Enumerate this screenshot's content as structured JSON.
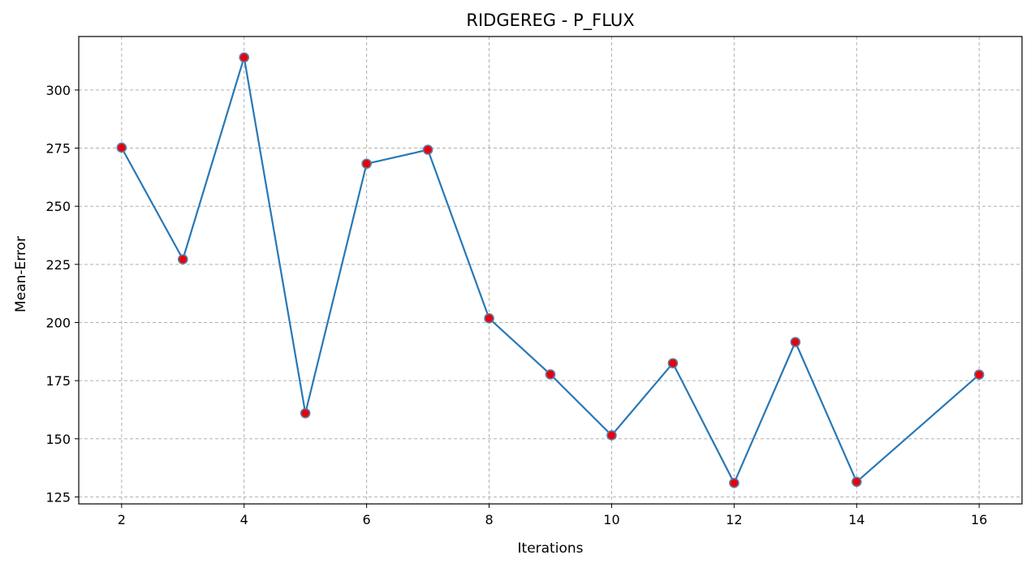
{
  "chart_data": {
    "type": "line",
    "title": "RIDGEREG - P_FLUX",
    "xlabel": "Iterations",
    "ylabel": "Mean-Error",
    "xlim": [
      1.3,
      16.7
    ],
    "ylim": [
      122,
      323
    ],
    "xticks": [
      2,
      4,
      6,
      8,
      10,
      12,
      14,
      16
    ],
    "yticks": [
      125,
      150,
      175,
      200,
      225,
      250,
      275,
      300
    ],
    "grid": true,
    "series": [
      {
        "x": [
          2,
          3,
          4,
          5,
          6,
          7,
          8,
          9,
          10,
          11,
          12,
          13,
          14,
          16
        ],
        "values": [
          275.2,
          227.2,
          314.0,
          161.0,
          268.3,
          274.3,
          201.8,
          177.7,
          151.5,
          182.5,
          131.0,
          191.6,
          131.5,
          177.6
        ],
        "line_color": "#2878b5",
        "marker_color": "#e8000b",
        "marker_edge_color": "#5a7fa8"
      }
    ]
  }
}
